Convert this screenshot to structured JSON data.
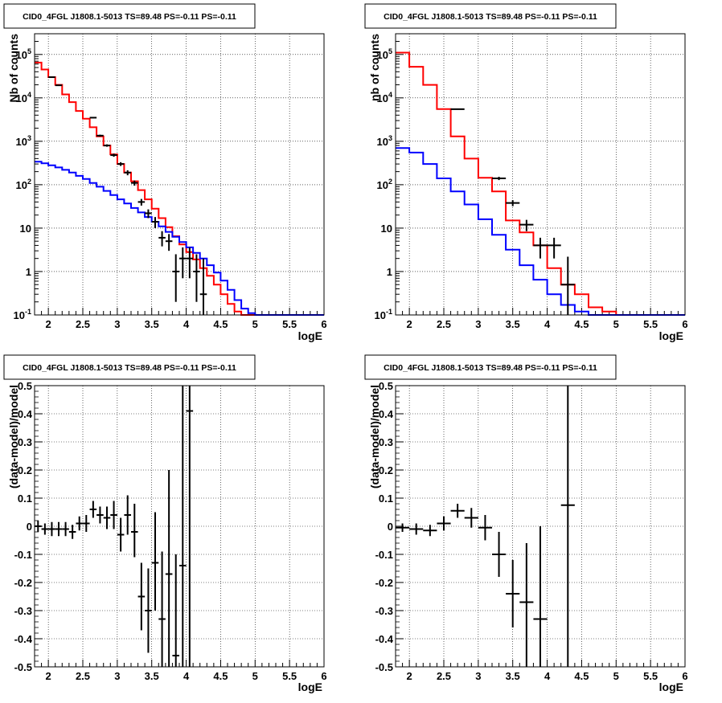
{
  "panels": [
    {
      "title": "CID0_4FGL J1808.1-5013 TS=89.48 PS=-0.11 PS=-0.11",
      "xlabel": "logE",
      "ylabel": "Nb of counts"
    },
    {
      "title": "CID0_4FGL J1808.1-5013 TS=89.48 PS=-0.11 PS=-0.11",
      "xlabel": "logE",
      "ylabel": "nb of counts"
    },
    {
      "title": "CID0_4FGL J1808.1-5013 TS=89.48 PS=-0.11 PS=-0.11",
      "xlabel": "logE",
      "ylabel": "(data-model)/model"
    },
    {
      "title": "CID0_4FGL J1808.1-5013 TS=89.48 PS=-0.11 PS=-0.11",
      "xlabel": "logE",
      "ylabel": "(data-model)/model"
    }
  ],
  "colors": {
    "total_model": "#ff0000",
    "component_model": "#0000ff",
    "data": "#000000",
    "grid": "#000000"
  },
  "chart_data": [
    {
      "type": "line",
      "title": "CID0_4FGL J1808.1-5013 TS=89.48 PS=-0.11 PS=-0.11",
      "xlabel": "logE",
      "ylabel": "Nb of counts",
      "xlim": [
        1.8,
        6.0
      ],
      "ylim": [
        0.1,
        300000
      ],
      "yscale": "log",
      "grid": true,
      "xticks": [
        "2",
        "2.5",
        "3",
        "3.5",
        "4",
        "4.5",
        "5",
        "5.5",
        "6"
      ],
      "yticks": [
        "10^-1",
        "1",
        "10",
        "10^2",
        "10^3",
        "10^4",
        "10^5"
      ],
      "bin_edges": [
        1.8,
        1.9,
        2.0,
        2.1,
        2.2,
        2.3,
        2.4,
        2.5,
        2.6,
        2.7,
        2.8,
        2.9,
        3.0,
        3.1,
        3.2,
        3.3,
        3.4,
        3.5,
        3.6,
        3.7,
        3.8,
        3.9,
        4.0,
        4.1,
        4.2,
        4.3,
        4.4,
        4.5,
        4.6,
        4.7,
        4.8,
        4.9,
        5.0,
        5.1,
        5.2,
        5.3,
        5.4,
        5.5,
        5.6,
        5.7,
        5.8,
        5.9,
        6.0
      ],
      "series": [
        {
          "role": "total_model",
          "style": "step",
          "values": [
            65000,
            45000,
            30000,
            20000,
            12000,
            8000,
            5000,
            3300,
            2100,
            1300,
            800,
            500,
            300,
            190,
            120,
            75,
            46,
            28,
            17,
            10.5,
            6.5,
            4.2,
            2.8,
            1.9,
            1.2,
            0.8,
            0.5,
            0.3,
            0.18,
            0.12,
            0.1,
            0.1,
            0.1,
            0.1,
            0.1,
            0.1,
            0.1,
            0.1,
            0.1,
            0.1,
            0.1,
            0.1
          ]
        },
        {
          "role": "component_model",
          "style": "step",
          "values": [
            340,
            310,
            280,
            250,
            220,
            190,
            160,
            135,
            110,
            90,
            72,
            58,
            46,
            37,
            29,
            23,
            18,
            14,
            11,
            8.2,
            6.3,
            4.8,
            3.6,
            2.7,
            2.0,
            1.4,
            0.95,
            0.62,
            0.38,
            0.22,
            0.14,
            0.11,
            0.1,
            0.1,
            0.1,
            0.1,
            0.1,
            0.1,
            0.1,
            0.1,
            0.1,
            0.1
          ]
        },
        {
          "role": "data",
          "style": "points",
          "points": [
            {
              "x": 2.05,
              "y": 30000,
              "lo": 29500,
              "hi": 30500
            },
            {
              "x": 2.15,
              "y": 19500,
              "lo": 19200,
              "hi": 19800
            },
            {
              "x": 2.65,
              "y": 3500,
              "lo": 3380,
              "hi": 3620
            },
            {
              "x": 2.75,
              "y": 1350,
              "lo": 1280,
              "hi": 1420
            },
            {
              "x": 2.85,
              "y": 800,
              "lo": 750,
              "hi": 850
            },
            {
              "x": 2.95,
              "y": 480,
              "lo": 440,
              "hi": 520
            },
            {
              "x": 3.05,
              "y": 300,
              "lo": 270,
              "hi": 330
            },
            {
              "x": 3.15,
              "y": 190,
              "lo": 165,
              "hi": 215
            },
            {
              "x": 3.25,
              "y": 110,
              "lo": 95,
              "hi": 125
            },
            {
              "x": 3.35,
              "y": 40,
              "lo": 33,
              "hi": 47
            },
            {
              "x": 3.45,
              "y": 22,
              "lo": 17,
              "hi": 27
            },
            {
              "x": 3.55,
              "y": 14,
              "lo": 10,
              "hi": 18
            },
            {
              "x": 3.65,
              "y": 6,
              "lo": 3.8,
              "hi": 8.5
            },
            {
              "x": 3.75,
              "y": 5,
              "lo": 3,
              "hi": 7.3
            },
            {
              "x": 3.85,
              "y": 1,
              "lo": 0.2,
              "hi": 2.5
            },
            {
              "x": 3.95,
              "y": 2,
              "lo": 0.7,
              "hi": 3.6
            },
            {
              "x": 4.05,
              "y": 2,
              "lo": 0.7,
              "hi": 3.6
            },
            {
              "x": 4.15,
              "y": 1,
              "lo": 0.2,
              "hi": 2.5
            },
            {
              "x": 4.25,
              "y": 0.3,
              "lo": 0.1,
              "hi": 2
            }
          ]
        }
      ]
    },
    {
      "type": "line",
      "title": "CID0_4FGL J1808.1-5013 TS=89.48 PS=-0.11 PS=-0.11",
      "xlabel": "logE",
      "ylabel": "nb of counts",
      "xlim": [
        1.8,
        6.0
      ],
      "ylim": [
        0.1,
        300000
      ],
      "yscale": "log",
      "grid": true,
      "xticks": [
        "2",
        "2.5",
        "3",
        "3.5",
        "4",
        "4.5",
        "5",
        "5.5",
        "6"
      ],
      "yticks": [
        "10^-1",
        "1",
        "10",
        "10^2",
        "10^3",
        "10^4",
        "10^5"
      ],
      "bin_edges": [
        1.8,
        2.0,
        2.2,
        2.4,
        2.6,
        2.8,
        3.0,
        3.2,
        3.4,
        3.6,
        3.8,
        4.0,
        4.2,
        4.4,
        4.6,
        4.8,
        5.0,
        5.2,
        5.4,
        5.6,
        5.8,
        6.0
      ],
      "series": [
        {
          "role": "total_model",
          "style": "step",
          "values": [
            110000,
            52000,
            20000,
            5500,
            1300,
            400,
            145,
            70,
            15,
            8,
            4,
            1.2,
            0.5,
            0.3,
            0.15,
            0.12,
            0.1,
            0.1,
            0.1,
            0.1,
            0.1
          ]
        },
        {
          "role": "component_model",
          "style": "step",
          "values": [
            700,
            550,
            300,
            140,
            70,
            35,
            16,
            7,
            3.2,
            1.4,
            0.65,
            0.3,
            0.17,
            0.12,
            0.1,
            0.1,
            0.1,
            0.1,
            0.1,
            0.1,
            0.1
          ]
        },
        {
          "role": "data",
          "style": "points",
          "points": [
            {
              "x": 2.7,
              "y": 5500,
              "lo": 5350,
              "hi": 5650
            },
            {
              "x": 3.3,
              "y": 140,
              "lo": 128,
              "hi": 152
            },
            {
              "x": 3.5,
              "y": 38,
              "lo": 32,
              "hi": 44
            },
            {
              "x": 3.7,
              "y": 12,
              "lo": 8.5,
              "hi": 15.5
            },
            {
              "x": 3.9,
              "y": 4,
              "lo": 2,
              "hi": 6
            },
            {
              "x": 4.1,
              "y": 4,
              "lo": 2,
              "hi": 6
            },
            {
              "x": 4.3,
              "y": 0.5,
              "lo": 0.1,
              "hi": 2.2
            }
          ]
        }
      ]
    },
    {
      "type": "scatter",
      "title": "CID0_4FGL J1808.1-5013 TS=89.48 PS=-0.11 PS=-0.11",
      "xlabel": "logE",
      "ylabel": "(data-model)/model",
      "xlim": [
        1.8,
        6.0
      ],
      "ylim": [
        -0.5,
        0.5
      ],
      "grid": true,
      "xticks": [
        "2",
        "2.5",
        "3",
        "3.5",
        "4",
        "4.5",
        "5",
        "5.5",
        "6"
      ],
      "yticks": [
        "-0.5",
        "-0.4",
        "-0.3",
        "-0.2",
        "-0.1",
        "0",
        "0.1",
        "0.2",
        "0.3",
        "0.4",
        "0.5"
      ],
      "bin_width": 0.1,
      "series": [
        {
          "role": "data",
          "style": "points",
          "points": [
            {
              "x": 1.85,
              "y": 0.0,
              "lo": -0.02,
              "hi": 0.02
            },
            {
              "x": 1.95,
              "y": -0.01,
              "lo": -0.03,
              "hi": 0.01
            },
            {
              "x": 2.05,
              "y": -0.01,
              "lo": -0.035,
              "hi": 0.015
            },
            {
              "x": 2.15,
              "y": -0.01,
              "lo": -0.035,
              "hi": 0.015
            },
            {
              "x": 2.25,
              "y": -0.01,
              "lo": -0.035,
              "hi": 0.015
            },
            {
              "x": 2.35,
              "y": -0.02,
              "lo": -0.045,
              "hi": 0.005
            },
            {
              "x": 2.45,
              "y": 0.01,
              "lo": -0.015,
              "hi": 0.035
            },
            {
              "x": 2.55,
              "y": 0.01,
              "lo": -0.02,
              "hi": 0.04
            },
            {
              "x": 2.65,
              "y": 0.06,
              "lo": 0.03,
              "hi": 0.09
            },
            {
              "x": 2.75,
              "y": 0.04,
              "lo": 0.01,
              "hi": 0.07
            },
            {
              "x": 2.85,
              "y": 0.03,
              "lo": -0.01,
              "hi": 0.07
            },
            {
              "x": 2.95,
              "y": 0.04,
              "lo": -0.01,
              "hi": 0.09
            },
            {
              "x": 3.05,
              "y": -0.03,
              "lo": -0.09,
              "hi": 0.03
            },
            {
              "x": 3.15,
              "y": 0.04,
              "lo": -0.03,
              "hi": 0.11
            },
            {
              "x": 3.25,
              "y": -0.02,
              "lo": -0.11,
              "hi": 0.08
            },
            {
              "x": 3.35,
              "y": -0.25,
              "lo": -0.37,
              "hi": -0.13
            },
            {
              "x": 3.45,
              "y": -0.3,
              "lo": -0.45,
              "hi": -0.15
            },
            {
              "x": 3.55,
              "y": -0.13,
              "lo": -0.3,
              "hi": 0.05
            },
            {
              "x": 3.65,
              "y": -0.33,
              "lo": -0.5,
              "hi": -0.09
            },
            {
              "x": 3.75,
              "y": -0.17,
              "lo": -0.5,
              "hi": 0.2
            },
            {
              "x": 3.85,
              "y": -0.46,
              "lo": -0.5,
              "hi": -0.1
            },
            {
              "x": 3.95,
              "y": -0.14,
              "lo": -0.5,
              "hi": 0.5
            },
            {
              "x": 4.05,
              "y": 0.41,
              "lo": -0.5,
              "hi": 0.5
            }
          ]
        }
      ]
    },
    {
      "type": "scatter",
      "title": "CID0_4FGL J1808.1-5013 TS=89.48 PS=-0.11 PS=-0.11",
      "xlabel": "logE",
      "ylabel": "(data-model)/model",
      "xlim": [
        1.8,
        6.0
      ],
      "ylim": [
        -0.5,
        0.5
      ],
      "grid": true,
      "xticks": [
        "2",
        "2.5",
        "3",
        "3.5",
        "4",
        "4.5",
        "5",
        "5.5",
        "6"
      ],
      "yticks": [
        "-0.5",
        "-0.4",
        "-0.3",
        "-0.2",
        "-0.1",
        "0",
        "0.1",
        "0.2",
        "0.3",
        "0.4",
        "0.5"
      ],
      "bin_width": 0.2,
      "series": [
        {
          "role": "data",
          "style": "points",
          "points": [
            {
              "x": 1.9,
              "y": -0.005,
              "lo": -0.02,
              "hi": 0.01
            },
            {
              "x": 2.1,
              "y": -0.01,
              "lo": -0.03,
              "hi": 0.01
            },
            {
              "x": 2.3,
              "y": -0.015,
              "lo": -0.035,
              "hi": 0.005
            },
            {
              "x": 2.5,
              "y": 0.01,
              "lo": -0.015,
              "hi": 0.035
            },
            {
              "x": 2.7,
              "y": 0.055,
              "lo": 0.03,
              "hi": 0.08
            },
            {
              "x": 2.9,
              "y": 0.03,
              "lo": -0.005,
              "hi": 0.065
            },
            {
              "x": 3.1,
              "y": -0.005,
              "lo": -0.05,
              "hi": 0.04
            },
            {
              "x": 3.3,
              "y": -0.1,
              "lo": -0.18,
              "hi": -0.02
            },
            {
              "x": 3.5,
              "y": -0.24,
              "lo": -0.36,
              "hi": -0.12
            },
            {
              "x": 3.7,
              "y": -0.27,
              "lo": -0.5,
              "hi": -0.06
            },
            {
              "x": 3.9,
              "y": -0.33,
              "lo": -0.5,
              "hi": 0.0
            },
            {
              "x": 4.3,
              "y": 0.075,
              "lo": -0.5,
              "hi": 0.5
            }
          ]
        }
      ]
    }
  ]
}
